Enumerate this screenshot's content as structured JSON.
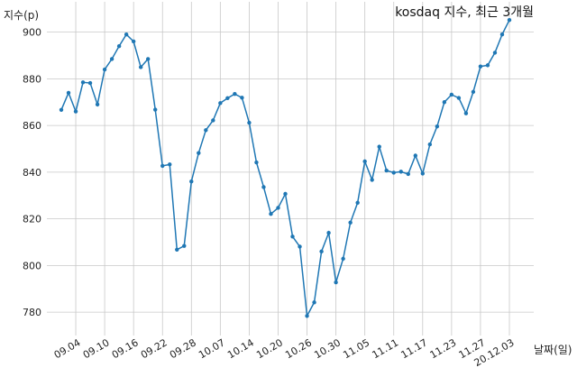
{
  "chart_data": {
    "type": "line",
    "title": "kosdaq 지수, 최근 3개월",
    "xlabel": "날짜(일)",
    "ylabel": "지수(p)",
    "ylim": [
      770,
      913
    ],
    "yticks": [
      780,
      800,
      820,
      840,
      860,
      880,
      900
    ],
    "grid": true,
    "xtick_labels": [
      "09.04",
      "09.10",
      "09.16",
      "09.22",
      "09.28",
      "10.07",
      "10.14",
      "10.20",
      "10.26",
      "10.30",
      "11.05",
      "11.11",
      "11.17",
      "11.23",
      "11.27",
      "20.12.03"
    ],
    "xtick_index": [
      2,
      6,
      10,
      14,
      18,
      22,
      26,
      30,
      34,
      38,
      42,
      46,
      50,
      54,
      58,
      62
    ],
    "color": "#1f77b4",
    "series": [
      {
        "values": [
          866.7,
          874.0,
          866.0,
          878.5,
          878.2,
          869.0,
          884.0,
          888.5,
          894.0,
          899.0,
          896.0,
          885.0,
          888.5,
          866.8,
          842.7,
          843.3,
          806.8,
          808.4,
          836.0,
          848.2,
          858.0,
          862.2,
          869.6,
          871.7,
          873.5,
          871.9,
          861.2,
          844.2,
          833.6,
          822.1,
          824.7,
          830.7,
          812.4,
          808.1,
          778.4,
          784.2,
          806.0,
          814.0,
          792.8,
          802.9,
          818.4,
          826.9,
          844.6,
          836.7,
          850.9,
          840.7,
          839.8,
          840.2,
          839.2,
          847.1,
          839.4,
          851.9,
          859.6,
          870.0,
          873.2,
          871.8,
          865.2,
          874.4,
          885.3,
          885.8,
          891.2,
          899.0,
          905.2
        ]
      }
    ]
  }
}
